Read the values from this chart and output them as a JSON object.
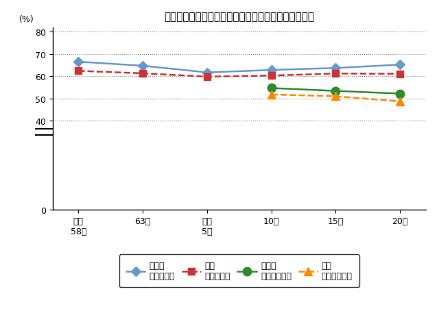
{
  "title": "持ち家住宅率と現住居の敷地を所有する世帯数の割合",
  "ylabel": "(%)",
  "x_labels": [
    "昭和\n58年",
    "63年",
    "平成\n5年",
    "10年",
    "15年",
    "20年"
  ],
  "x_positions": [
    0,
    1,
    2,
    3,
    4,
    5
  ],
  "series": [
    {
      "name_line1": "埼玉県",
      "name_line2": "（持ち家）",
      "values": [
        66.5,
        64.7,
        61.7,
        62.8,
        63.7,
        65.2
      ],
      "color": "#6699CC",
      "linestyle": "-",
      "marker": "D",
      "linewidth": 1.8,
      "markersize": 7
    },
    {
      "name_line1": "全国",
      "name_line2": "（持ち家）",
      "values": [
        62.4,
        61.3,
        59.8,
        60.3,
        61.2,
        61.1
      ],
      "color": "#CC3333",
      "linestyle": "--",
      "marker": "s",
      "linewidth": 1.8,
      "markersize": 7
    },
    {
      "name_line1": "埼玉県",
      "name_line2": "（世帯割合）",
      "values": [
        null,
        null,
        null,
        54.7,
        53.4,
        52.2
      ],
      "color": "#2E8B2E",
      "linestyle": "-",
      "marker": "o",
      "linewidth": 1.8,
      "markersize": 9
    },
    {
      "name_line1": "全国",
      "name_line2": "（世帯割合）",
      "values": [
        null,
        null,
        null,
        51.8,
        51.0,
        48.7
      ],
      "color": "#FF8800",
      "linestyle": "--",
      "marker": "^",
      "linewidth": 1.8,
      "markersize": 8
    }
  ],
  "ylim": [
    0,
    82
  ],
  "yticks": [
    0,
    40,
    50,
    60,
    70,
    80
  ],
  "grid_ticks": [
    40,
    50,
    60,
    70,
    80
  ],
  "background_color": "#ffffff",
  "title_fontsize": 11,
  "axis_fontsize": 9,
  "legend_fontsize": 9
}
